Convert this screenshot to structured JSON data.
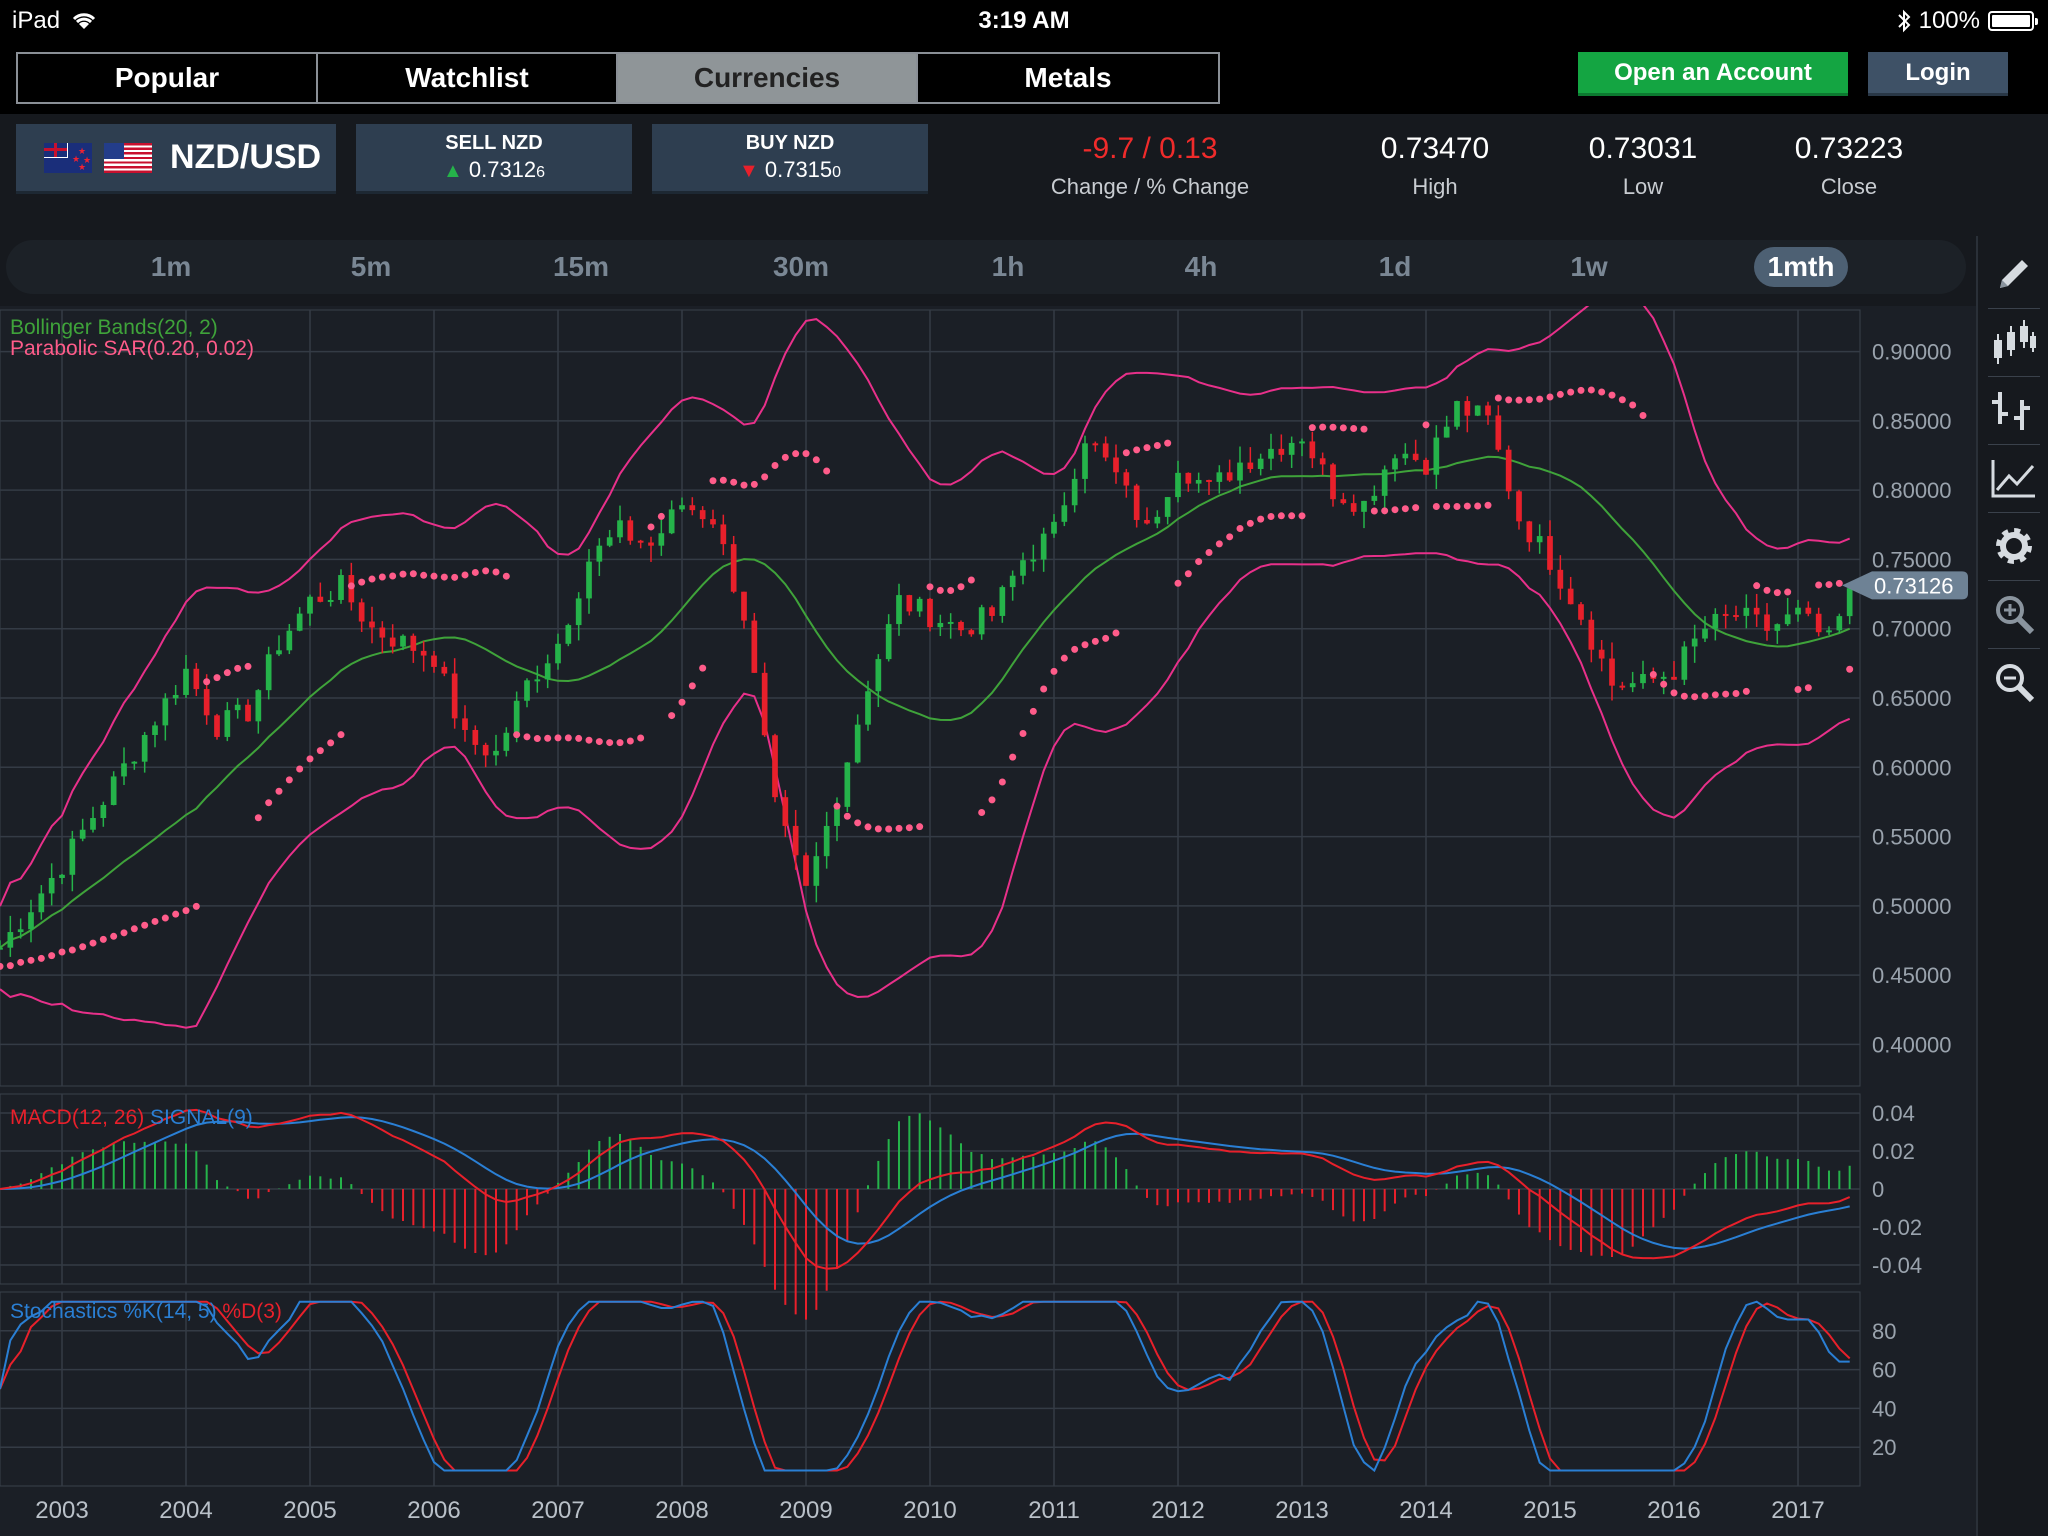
{
  "status": {
    "device": "iPad",
    "time": "3:19 AM",
    "battery": "100%"
  },
  "nav": {
    "tabs": [
      "Popular",
      "Watchlist",
      "Currencies",
      "Metals"
    ],
    "active_tab": "Currencies",
    "open_account": "Open an Account",
    "login": "Login"
  },
  "instrument": {
    "pair": "NZD/USD",
    "sell_label": "SELL NZD",
    "sell_price": "0.7312",
    "sell_pip": "6",
    "buy_label": "BUY NZD",
    "buy_price": "0.7315",
    "buy_pip": "0",
    "change": "-9.7 / 0.13",
    "change_label": "Change / % Change",
    "high": "0.73470",
    "high_label": "High",
    "low": "0.73031",
    "low_label": "Low",
    "close": "0.73223",
    "close_label": "Close"
  },
  "timeframes": [
    "1m",
    "5m",
    "15m",
    "30m",
    "1h",
    "4h",
    "1d",
    "1w",
    "1mth"
  ],
  "active_timeframe": "1mth",
  "colors": {
    "bull": "#25b34a",
    "bear": "#e8202b",
    "bb_band": "#e8308a",
    "bb_mid": "#3fa33a",
    "sar": "#ff5c8a",
    "macd": "#e8202b",
    "signal": "#2a7fd4",
    "stoch_k": "#2a7fd4",
    "stoch_d": "#e8202b"
  },
  "tools": [
    "pencil-icon",
    "candles-icon",
    "ohlc-icon",
    "line-chart-icon",
    "gear-icon",
    "zoom-in-icon",
    "zoom-out-icon"
  ],
  "chart_data": {
    "type": "candlestick",
    "symbol": "NZD/USD",
    "interval": "1mth",
    "last_price": "0.73126",
    "price_axis": {
      "labels": [
        "0.90000",
        "0.85000",
        "0.80000",
        "0.75000",
        "0.70000",
        "0.65000",
        "0.60000",
        "0.55000",
        "0.50000",
        "0.45000",
        "0.40000"
      ],
      "ylim": [
        0.37,
        0.93
      ]
    },
    "x_labels": [
      "2003",
      "2004",
      "2005",
      "2006",
      "2007",
      "2008",
      "2009",
      "2010",
      "2011",
      "2012",
      "2013",
      "2014",
      "2015",
      "2016",
      "2017"
    ],
    "x_range": [
      2002.5,
      2017.5
    ],
    "overlays": [
      "Bollinger Bands(20, 2)",
      "Parabolic SAR(0.20, 0.02)"
    ],
    "close_series": [
      [
        2002.5,
        0.47
      ],
      [
        2003.0,
        0.53
      ],
      [
        2003.5,
        0.6
      ],
      [
        2004.0,
        0.67
      ],
      [
        2004.25,
        0.63
      ],
      [
        2004.5,
        0.64
      ],
      [
        2004.75,
        0.69
      ],
      [
        2005.0,
        0.72
      ],
      [
        2005.25,
        0.73
      ],
      [
        2005.5,
        0.7
      ],
      [
        2005.75,
        0.69
      ],
      [
        2006.0,
        0.68
      ],
      [
        2006.25,
        0.62
      ],
      [
        2006.5,
        0.61
      ],
      [
        2006.75,
        0.66
      ],
      [
        2007.0,
        0.69
      ],
      [
        2007.25,
        0.75
      ],
      [
        2007.5,
        0.77
      ],
      [
        2007.75,
        0.76
      ],
      [
        2008.0,
        0.79
      ],
      [
        2008.25,
        0.78
      ],
      [
        2008.5,
        0.71
      ],
      [
        2008.75,
        0.57
      ],
      [
        2009.0,
        0.51
      ],
      [
        2009.25,
        0.58
      ],
      [
        2009.5,
        0.66
      ],
      [
        2009.75,
        0.72
      ],
      [
        2010.0,
        0.71
      ],
      [
        2010.25,
        0.7
      ],
      [
        2010.5,
        0.71
      ],
      [
        2010.75,
        0.75
      ],
      [
        2011.0,
        0.77
      ],
      [
        2011.25,
        0.84
      ],
      [
        2011.5,
        0.81
      ],
      [
        2011.75,
        0.77
      ],
      [
        2012.0,
        0.82
      ],
      [
        2012.25,
        0.8
      ],
      [
        2012.5,
        0.82
      ],
      [
        2012.75,
        0.83
      ],
      [
        2013.0,
        0.84
      ],
      [
        2013.25,
        0.8
      ],
      [
        2013.5,
        0.79
      ],
      [
        2013.75,
        0.83
      ],
      [
        2014.0,
        0.82
      ],
      [
        2014.25,
        0.86
      ],
      [
        2014.5,
        0.85
      ],
      [
        2014.75,
        0.78
      ],
      [
        2015.0,
        0.75
      ],
      [
        2015.25,
        0.71
      ],
      [
        2015.5,
        0.66
      ],
      [
        2015.75,
        0.66
      ],
      [
        2016.0,
        0.67
      ],
      [
        2016.25,
        0.7
      ],
      [
        2016.5,
        0.71
      ],
      [
        2016.75,
        0.7
      ],
      [
        2017.0,
        0.71
      ],
      [
        2017.25,
        0.69
      ],
      [
        2017.45,
        0.73
      ]
    ],
    "macd": {
      "label": "MACD(12, 26)",
      "signal_label": "SIGNAL(9)",
      "axis_labels": [
        "0.04",
        "0.02",
        "0",
        "-0.02",
        "-0.04"
      ],
      "ylim": [
        -0.05,
        0.05
      ]
    },
    "stochastics": {
      "label": "Stochastics %K(14, 5)",
      "d_label": "%D(3)",
      "axis_labels": [
        "80",
        "60",
        "40",
        "20"
      ],
      "ylim": [
        0,
        100
      ]
    }
  }
}
